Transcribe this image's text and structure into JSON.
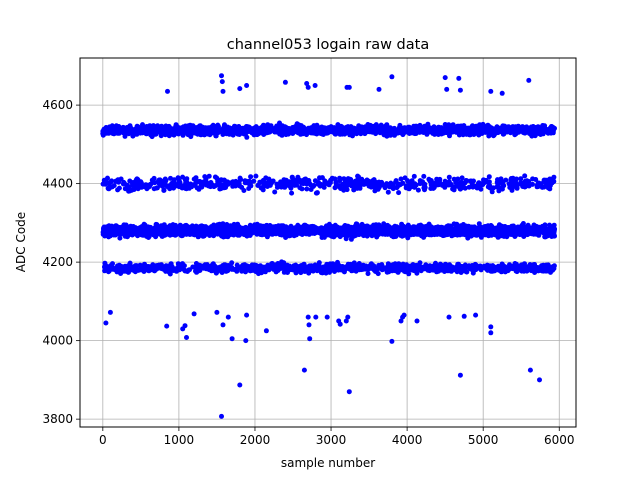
{
  "chart_data": {
    "type": "scatter",
    "title": "channel053 logain raw data",
    "xlabel": "sample number",
    "ylabel": "ADC Code",
    "xlim": [
      -300,
      6220
    ],
    "ylim": [
      3780,
      4720
    ],
    "xticks": [
      0,
      1000,
      2000,
      3000,
      4000,
      5000,
      6000
    ],
    "yticks": [
      3800,
      4000,
      4200,
      4400,
      4600
    ],
    "grid": true,
    "marker_color": "#0000ff",
    "series": [
      {
        "n_samples": 5940,
        "levels": [
          {
            "center": 4536,
            "spread": 14,
            "share": 0.25
          },
          {
            "center": 4400,
            "spread": 20,
            "share": 0.1
          },
          {
            "center": 4280,
            "spread": 15,
            "share": 0.45
          },
          {
            "center": 4185,
            "spread": 13,
            "share": 0.14
          }
        ],
        "outliers": [
          [
            40,
            4045
          ],
          [
            100,
            4072
          ],
          [
            840,
            4037
          ],
          [
            850,
            4635
          ],
          [
            1050,
            4030
          ],
          [
            1080,
            4038
          ],
          [
            1100,
            4008
          ],
          [
            1200,
            4068
          ],
          [
            1500,
            4072
          ],
          [
            1560,
            4675
          ],
          [
            1570,
            4660
          ],
          [
            1580,
            4635
          ],
          [
            1580,
            4040
          ],
          [
            1560,
            3807
          ],
          [
            1650,
            4060
          ],
          [
            1700,
            4005
          ],
          [
            1800,
            3887
          ],
          [
            1800,
            4642
          ],
          [
            1880,
            4000
          ],
          [
            1890,
            4650
          ],
          [
            1890,
            4065
          ],
          [
            2150,
            4025
          ],
          [
            2400,
            4658
          ],
          [
            2650,
            3925
          ],
          [
            2680,
            4655
          ],
          [
            2700,
            4645
          ],
          [
            2700,
            4060
          ],
          [
            2710,
            4040
          ],
          [
            2720,
            4005
          ],
          [
            2790,
            4650
          ],
          [
            2800,
            4060
          ],
          [
            2950,
            4060
          ],
          [
            3100,
            4050
          ],
          [
            3120,
            4042
          ],
          [
            3200,
            4050
          ],
          [
            3210,
            4645
          ],
          [
            3220,
            4060
          ],
          [
            3240,
            4645
          ],
          [
            3240,
            3870
          ],
          [
            3630,
            4640
          ],
          [
            3800,
            4672
          ],
          [
            3800,
            3998
          ],
          [
            3920,
            4050
          ],
          [
            3940,
            4060
          ],
          [
            3960,
            4065
          ],
          [
            4130,
            4050
          ],
          [
            4500,
            4670
          ],
          [
            4520,
            4640
          ],
          [
            4550,
            4060
          ],
          [
            4680,
            4668
          ],
          [
            4700,
            3912
          ],
          [
            4700,
            4638
          ],
          [
            4750,
            4062
          ],
          [
            4900,
            4065
          ],
          [
            5100,
            4635
          ],
          [
            5100,
            4035
          ],
          [
            5100,
            4020
          ],
          [
            5250,
            4630
          ],
          [
            5600,
            4663
          ],
          [
            5620,
            3925
          ],
          [
            5740,
            3900
          ]
        ]
      }
    ]
  }
}
